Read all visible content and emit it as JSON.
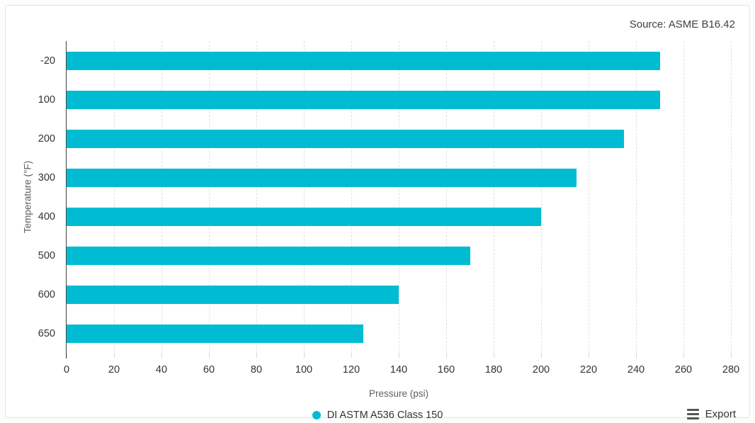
{
  "source_label": "Source: ASME B16.42",
  "chart_data": {
    "type": "bar",
    "orientation": "horizontal",
    "title": "",
    "categories": [
      "-20",
      "100",
      "200",
      "300",
      "400",
      "500",
      "600",
      "650"
    ],
    "series": [
      {
        "name": "DI ASTM A536 Class 150",
        "values": [
          250,
          250,
          235,
          215,
          200,
          170,
          140,
          125
        ],
        "color": "#00bcd2"
      }
    ],
    "value_axis": {
      "label": "Pressure (psi)",
      "min": 0,
      "max": 280,
      "tick_step": 20,
      "ticks": [
        0,
        20,
        40,
        60,
        80,
        100,
        120,
        140,
        160,
        180,
        200,
        220,
        240,
        260,
        280
      ]
    },
    "category_axis": {
      "label": "Temperature (°F)"
    },
    "grid": "vertical-dashed",
    "legend_position": "bottom-center"
  },
  "legend": {
    "items": [
      {
        "label": "DI ASTM A536 Class 150",
        "color": "#00bcd2"
      }
    ]
  },
  "toolbar": {
    "export_label": "Export"
  },
  "colors": {
    "bar": "#00bcd2",
    "gridline": "#e0e0e0",
    "axis_line": "#424242",
    "tick_text": "#333333",
    "axis_title_text": "#5f5f5f"
  }
}
